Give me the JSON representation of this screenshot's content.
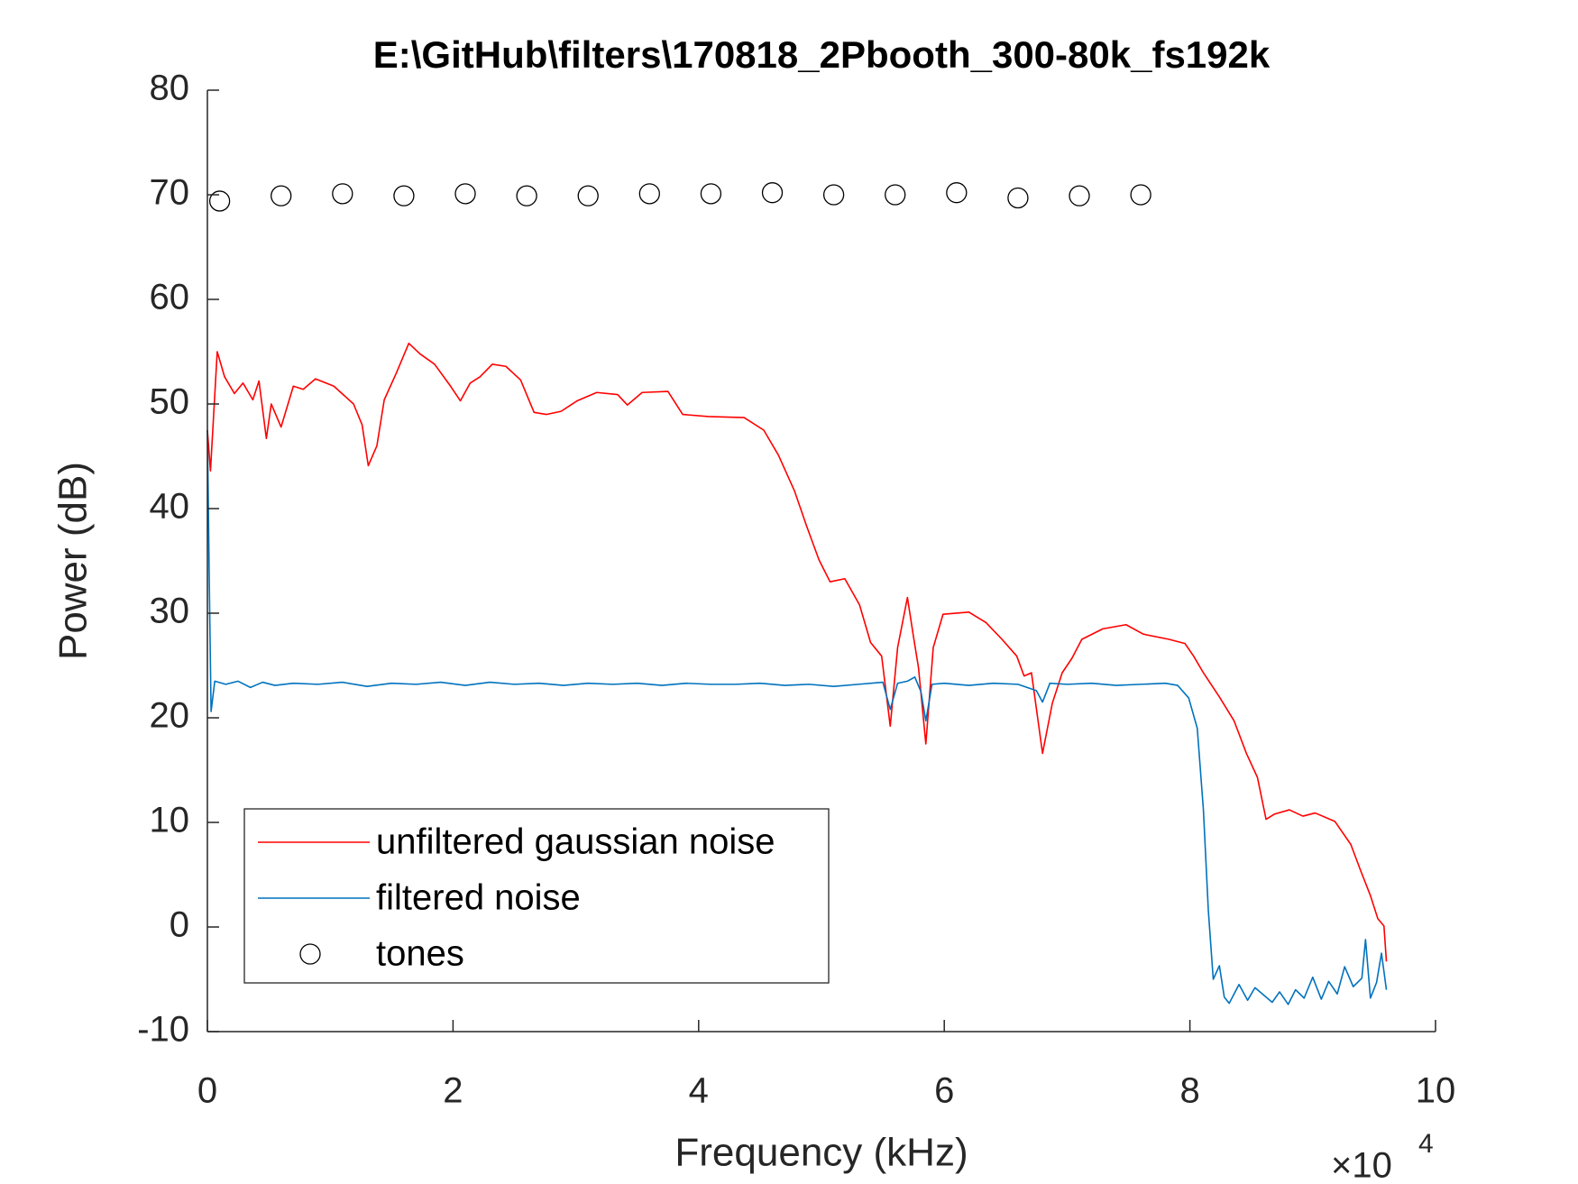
{
  "chart_data": {
    "type": "line",
    "title": "E:\\GitHub\\filters\\170818_2Pbooth_300-80k_fs192k",
    "xlabel": "Frequency (kHz)",
    "ylabel": "Power (dB)",
    "x_multiplier": {
      "base": "×10",
      "exponent": "4"
    },
    "xlim": [
      0,
      100000
    ],
    "xticks": [
      0,
      {
        "value": 20000,
        "label": "2"
      },
      {
        "value": 40000,
        "label": "4"
      },
      {
        "value": 60000,
        "label": "6"
      },
      {
        "value": 80000,
        "label": "8"
      },
      {
        "value": 100000,
        "label": "10"
      }
    ],
    "ylim": [
      -10,
      80
    ],
    "yticks": [
      -10,
      0,
      10,
      20,
      30,
      40,
      50,
      60,
      70,
      80
    ],
    "grid": false,
    "legend": "lower left",
    "series": [
      {
        "name": "unfiltered gaussian noise",
        "color": "#ff0000",
        "style": "line",
        "x": [
          0,
          250,
          800,
          1400,
          2200,
          2900,
          3700,
          4200,
          4800,
          5200,
          6000,
          7000,
          7800,
          8800,
          10300,
          11900,
          12600,
          13100,
          13800,
          14400,
          15400,
          16400,
          17300,
          18500,
          19800,
          20600,
          21400,
          22200,
          23200,
          24300,
          25500,
          26600,
          27600,
          28800,
          30100,
          31700,
          33400,
          34200,
          35400,
          37500,
          38700,
          40800,
          43700,
          45300,
          46500,
          47800,
          48800,
          49800,
          50700,
          51900,
          53100,
          54000,
          54900,
          55600,
          56200,
          57000,
          57500,
          57900,
          58500,
          59100,
          59900,
          62000,
          63400,
          64700,
          65900,
          66500,
          67100,
          68000,
          68800,
          69600,
          70400,
          71200,
          72900,
          74800,
          76200,
          78300,
          79600,
          80300,
          81100,
          82400,
          83600,
          84600,
          85500,
          86200,
          86900,
          88100,
          89200,
          90200,
          91800,
          93100,
          93900,
          94700,
          95300,
          95800,
          96000
        ],
        "values": [
          47.5,
          43.6,
          55,
          52.6,
          51,
          52,
          50.4,
          52.2,
          46.7,
          50,
          47.8,
          51.7,
          51.4,
          52.4,
          51.7,
          50,
          48,
          44.1,
          46,
          50.4,
          53,
          55.8,
          54.8,
          53.8,
          51.7,
          50.3,
          52,
          52.6,
          53.8,
          53.6,
          52.3,
          49.2,
          49,
          49.3,
          50.3,
          51.1,
          50.9,
          49.9,
          51.1,
          51.2,
          49,
          48.8,
          48.7,
          47.5,
          45.1,
          41.7,
          38.3,
          35.1,
          33,
          33.3,
          30.8,
          27.2,
          25.9,
          19.2,
          26.7,
          31.5,
          27.7,
          24.8,
          17.5,
          26.7,
          29.9,
          30.1,
          29.1,
          27.5,
          25.9,
          24,
          24.3,
          16.6,
          21.4,
          24.3,
          25.7,
          27.5,
          28.5,
          28.9,
          28,
          27.5,
          27.1,
          25.9,
          24.3,
          22,
          19.7,
          16.6,
          14.3,
          10.3,
          10.8,
          11.2,
          10.6,
          10.9,
          10.1,
          7.9,
          5.4,
          3,
          0.8,
          0.1,
          -3.3
        ]
      },
      {
        "name": "filtered noise",
        "color": "#0072bd",
        "style": "line",
        "x": [
          0,
          160,
          300,
          600,
          1500,
          2500,
          3500,
          4500,
          5500,
          7000,
          9000,
          11000,
          13000,
          15000,
          17000,
          19000,
          21000,
          23000,
          25000,
          27000,
          29000,
          31000,
          33000,
          35000,
          37000,
          39000,
          41000,
          43000,
          45000,
          47000,
          49000,
          51000,
          53000,
          55000,
          55600,
          56200,
          57000,
          57600,
          58100,
          58500,
          59000,
          60000,
          62000,
          64000,
          66000,
          67500,
          68000,
          68600,
          70000,
          72000,
          74000,
          76000,
          78000,
          79000,
          79900,
          80600,
          81100,
          81500,
          81900,
          82400,
          82800,
          83200,
          84000,
          84700,
          85300,
          86000,
          86700,
          87300,
          88000,
          88600,
          89300,
          90000,
          90700,
          91300,
          92000,
          92600,
          93300,
          94000,
          94300,
          94700,
          95200,
          95600,
          96000
        ],
        "values": [
          47.5,
          32.5,
          20.6,
          23.5,
          23.2,
          23.5,
          22.9,
          23.4,
          23.1,
          23.3,
          23.2,
          23.4,
          23,
          23.3,
          23.2,
          23.4,
          23.1,
          23.4,
          23.2,
          23.3,
          23.1,
          23.3,
          23.2,
          23.3,
          23.1,
          23.3,
          23.2,
          23.2,
          23.3,
          23.1,
          23.2,
          23,
          23.2,
          23.4,
          20.8,
          23.3,
          23.5,
          23.9,
          22.5,
          19.7,
          23.2,
          23.3,
          23.1,
          23.3,
          23.2,
          22.6,
          21.5,
          23.3,
          23.2,
          23.3,
          23.1,
          23.2,
          23.3,
          23.1,
          21.9,
          19,
          11.2,
          1.6,
          -5,
          -3.7,
          -6.7,
          -7.3,
          -5.5,
          -7,
          -5.8,
          -6.5,
          -7.2,
          -6.2,
          -7.4,
          -6,
          -6.8,
          -4.8,
          -6.9,
          -5.2,
          -6.4,
          -3.8,
          -5.7,
          -4.9,
          -1.2,
          -6.8,
          -5.3,
          -2.5,
          -6
        ]
      },
      {
        "name": "tones",
        "color": "#000000",
        "style": "markers",
        "x": [
          1000,
          6000,
          11000,
          16000,
          21000,
          26000,
          31000,
          36000,
          41000,
          46000,
          51000,
          56000,
          61000,
          66000,
          71000,
          76000
        ],
        "values": [
          69.4,
          69.9,
          70.1,
          69.9,
          70.1,
          69.9,
          69.9,
          70.1,
          70.1,
          70.2,
          70,
          70,
          70.2,
          69.7,
          69.9,
          70
        ]
      }
    ]
  }
}
